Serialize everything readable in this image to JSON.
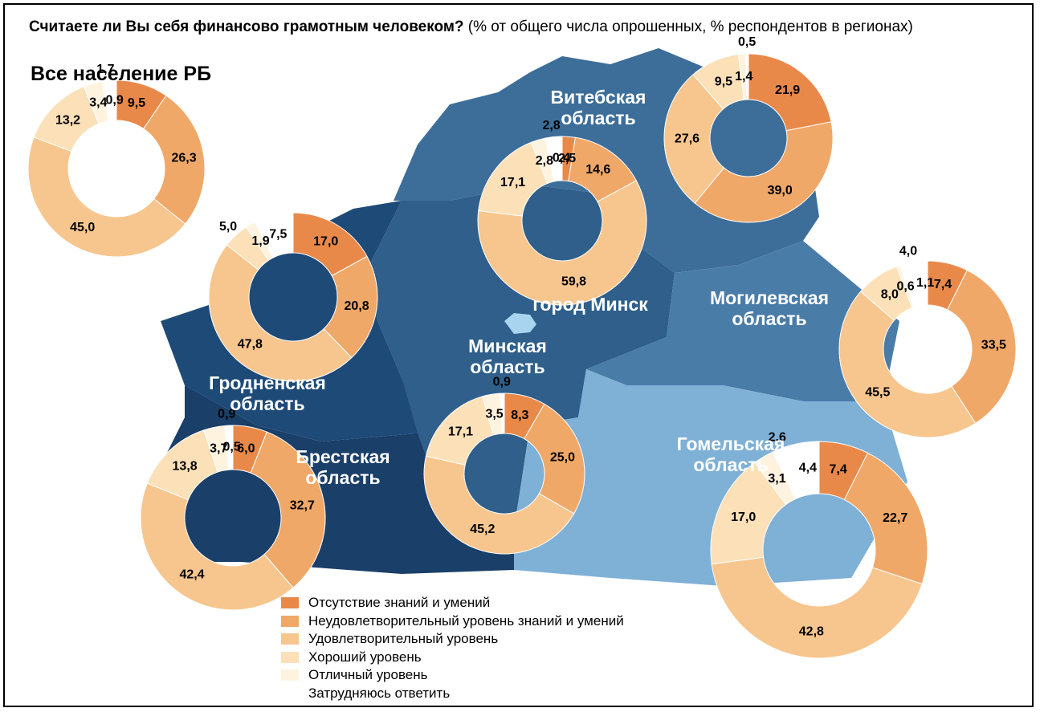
{
  "title": "Считаете ли Вы себя финансово грамотным человеком?",
  "subtitle": "(% от общего числа опрошенных, % респондентов в регионах)",
  "legend": [
    {
      "name": "Отсутствие знаний и умений",
      "color": "#e8894a"
    },
    {
      "name": "Неудовлетворительный уровень знаний и умений",
      "color": "#f0a868"
    },
    {
      "name": "Удовлетворительный уровень",
      "color": "#f7c68e"
    },
    {
      "name": "Хороший уровень",
      "color": "#fbe0b8"
    },
    {
      "name": "Отличный уровень",
      "color": "#fef3df"
    },
    {
      "name": "Затрудняюсь ответить",
      "color": "#ffffff"
    }
  ],
  "chart_data": [
    {
      "type": "donut",
      "title": "Все население РБ",
      "values": [
        9.5,
        26.3,
        45.0,
        13.2,
        3.4,
        1.7,
        0.9
      ],
      "value_labels": [
        "9,5",
        "26,3",
        "45,0",
        "13,2",
        "3,4",
        "1,7",
        "0,9"
      ],
      "colors": [
        "#e8894a",
        "#f0a868",
        "#f7c68e",
        "#fbe0b8",
        "#fef3df",
        "#ffffff",
        "#ffffff"
      ]
    },
    {
      "type": "donut",
      "title": "Витебская область",
      "values": [
        21.9,
        39.0,
        27.6,
        9.5,
        1.4,
        0.5
      ],
      "value_labels": [
        "21,9",
        "39,0",
        "27,6",
        "9,5",
        "1,4",
        "0,5"
      ],
      "colors": [
        "#e8894a",
        "#f0a868",
        "#f7c68e",
        "#fbe0b8",
        "#fef3df",
        "#ffffff"
      ]
    },
    {
      "type": "donut",
      "title": "город Минск",
      "values": [
        2.5,
        14.6,
        59.8,
        17.1,
        2.8,
        2.8,
        0.4
      ],
      "value_labels": [
        "2,5",
        "14,6",
        "59,8",
        "17,1",
        "2,8",
        "2,8",
        "0,4"
      ],
      "colors": [
        "#e8894a",
        "#f0a868",
        "#f7c68e",
        "#fbe0b8",
        "#fef3df",
        "#ffffff",
        "#ffffff"
      ]
    },
    {
      "type": "donut",
      "title": "Гродненская область",
      "values": [
        17.0,
        20.8,
        47.8,
        5.0,
        1.9,
        7.5
      ],
      "value_labels": [
        "17,0",
        "20,8",
        "47,8",
        "5,0",
        "1,9",
        "7,5"
      ],
      "colors": [
        "#e8894a",
        "#f0a868",
        "#f7c68e",
        "#fbe0b8",
        "#fef3df",
        "#ffffff"
      ]
    },
    {
      "type": "donut",
      "title": "Могилевская область",
      "values": [
        7.4,
        33.5,
        45.5,
        8.0,
        0.6,
        4.0,
        1.1
      ],
      "value_labels": [
        "7,4",
        "33,5",
        "45,5",
        "8,0",
        "0,6",
        "4,0",
        "1,1"
      ],
      "colors": [
        "#e8894a",
        "#f0a868",
        "#f7c68e",
        "#fbe0b8",
        "#fef3df",
        "#ffffff",
        "#ffffff"
      ]
    },
    {
      "type": "donut",
      "title": "Минская область",
      "values": [
        8.3,
        25.0,
        45.2,
        17.1,
        3.5,
        0.9
      ],
      "value_labels": [
        "8,3",
        "25,0",
        "45,2",
        "17,1",
        "3,5",
        "0,9"
      ],
      "colors": [
        "#e8894a",
        "#f0a868",
        "#f7c68e",
        "#fbe0b8",
        "#fef3df",
        "#ffffff"
      ]
    },
    {
      "type": "donut",
      "title": "Брестская область",
      "values": [
        6.0,
        32.7,
        42.4,
        13.8,
        3.7,
        0.9,
        0.5
      ],
      "value_labels": [
        "6,0",
        "32,7",
        "42,4",
        "13,8",
        "3,7",
        "0,9",
        "0,5"
      ],
      "colors": [
        "#e8894a",
        "#f0a868",
        "#f7c68e",
        "#fbe0b8",
        "#fef3df",
        "#ffffff",
        "#ffffff"
      ]
    },
    {
      "type": "donut",
      "title": "Гомельская область",
      "values": [
        7.4,
        22.7,
        42.8,
        17.0,
        3.1,
        2.6,
        4.4
      ],
      "value_labels": [
        "7,4",
        "22,7",
        "42,8",
        "17,0",
        "3,1",
        "2,6",
        "4,4"
      ],
      "colors": [
        "#e8894a",
        "#f0a868",
        "#f7c68e",
        "#fbe0b8",
        "#fef3df",
        "#ffffff",
        "#ffffff"
      ]
    }
  ]
}
